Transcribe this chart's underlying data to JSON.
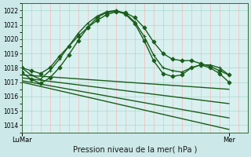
{
  "title": "Pression niveau de la mer( hPa )",
  "bg_color": "#cce8e8",
  "plot_bg": "#d8f0f0",
  "grid_color_h": "#aaddcc",
  "grid_color_v": "#ffaaaa",
  "line_color": "#1a5c1a",
  "ylim": [
    1013.5,
    1022.5
  ],
  "yticks": [
    1014,
    1015,
    1016,
    1017,
    1018,
    1019,
    1020,
    1021,
    1022
  ],
  "xlim": [
    0,
    48
  ],
  "xlabel_left": "LuMar",
  "xlabel_right": "Mer",
  "xtick_left": 0,
  "xtick_right": 44,
  "series": [
    {
      "x": [
        0,
        2,
        4,
        6,
        8,
        10,
        12,
        14,
        16,
        18,
        20,
        22,
        24,
        26,
        28,
        30,
        32,
        34,
        36,
        38,
        40,
        42,
        44
      ],
      "y": [
        1018.0,
        1017.8,
        1017.6,
        1018.0,
        1018.8,
        1019.5,
        1020.2,
        1020.8,
        1021.3,
        1021.7,
        1021.9,
        1021.85,
        1021.5,
        1020.8,
        1019.8,
        1019.0,
        1018.6,
        1018.5,
        1018.5,
        1018.3,
        1018.1,
        1017.8,
        1017.5
      ],
      "marker": "D",
      "markersize": 2.5,
      "linewidth": 1.0
    },
    {
      "x": [
        0,
        2,
        4,
        6,
        8,
        10,
        12,
        14,
        16,
        18,
        20,
        22,
        24,
        26,
        28,
        30,
        32,
        34,
        36,
        38,
        40,
        42,
        44
      ],
      "y": [
        1018.0,
        1017.5,
        1017.2,
        1017.8,
        1018.6,
        1019.5,
        1020.4,
        1021.1,
        1021.6,
        1021.9,
        1022.0,
        1021.8,
        1021.2,
        1020.2,
        1018.9,
        1018.0,
        1017.8,
        1017.7,
        1018.0,
        1018.2,
        1018.2,
        1018.0,
        1017.5
      ],
      "marker": "+",
      "markersize": 3.5,
      "linewidth": 1.0
    },
    {
      "x": [
        0,
        2,
        4,
        6,
        8,
        10,
        12,
        14,
        16,
        18,
        20,
        22,
        24,
        26,
        28,
        30,
        32,
        34,
        36,
        38,
        40,
        42,
        44
      ],
      "y": [
        1017.7,
        1017.2,
        1016.9,
        1017.3,
        1018.0,
        1018.9,
        1019.9,
        1020.8,
        1021.5,
        1021.85,
        1021.95,
        1021.75,
        1021.1,
        1019.9,
        1018.5,
        1017.6,
        1017.4,
        1017.5,
        1018.0,
        1018.2,
        1018.0,
        1017.6,
        1017.0
      ],
      "marker": "D",
      "markersize": 2.5,
      "linewidth": 1.0
    },
    {
      "x": [
        0,
        44
      ],
      "y": [
        1017.5,
        1016.5
      ],
      "marker": null,
      "markersize": 0,
      "linewidth": 1.0
    },
    {
      "x": [
        0,
        44
      ],
      "y": [
        1017.3,
        1015.5
      ],
      "marker": null,
      "markersize": 0,
      "linewidth": 1.0
    },
    {
      "x": [
        0,
        44
      ],
      "y": [
        1017.1,
        1014.5
      ],
      "marker": null,
      "markersize": 0,
      "linewidth": 1.0
    },
    {
      "x": [
        0,
        44
      ],
      "y": [
        1017.0,
        1013.7
      ],
      "marker": null,
      "markersize": 0,
      "linewidth": 1.0
    }
  ]
}
